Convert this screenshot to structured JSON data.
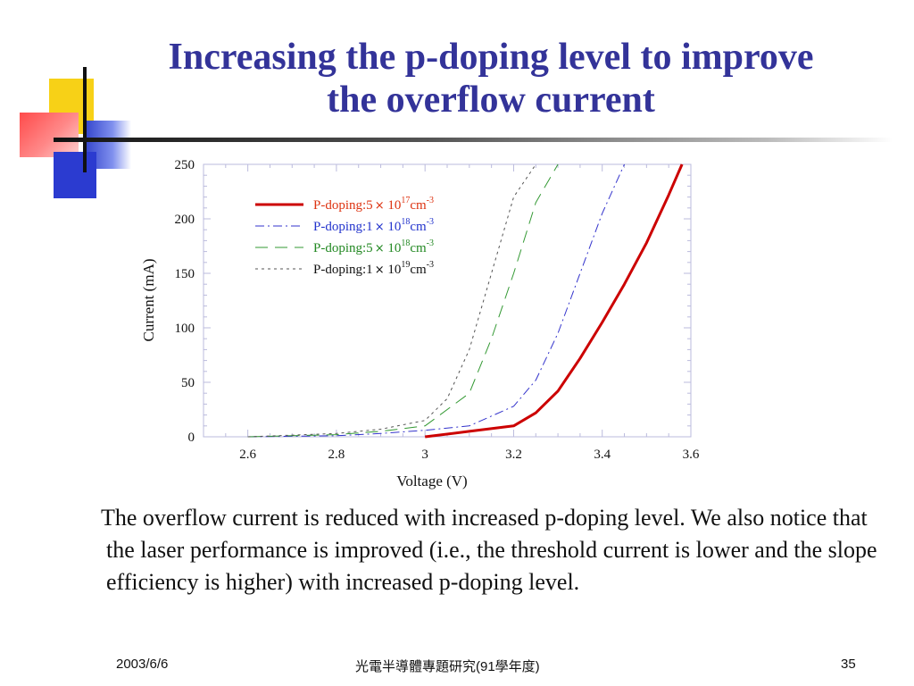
{
  "slide": {
    "title_line1": "Increasing the p-doping level to improve",
    "title_line2": "the overflow current",
    "body": "The overflow current is reduced with increased p-doping level. We also notice that the laser performance is improved (i.e., the threshold current is lower and the slope efficiency is higher) with increased p-doping level.",
    "footer_date": "2003/6/6",
    "footer_center": "光電半導體專題研究(91學年度)",
    "footer_page": "35",
    "accent_colors": {
      "title": "#333399",
      "yellow": "#f7d117",
      "red": "#ff4a4a",
      "blue": "#2b3bd0"
    }
  },
  "chart_data": {
    "type": "line",
    "title": "",
    "xlabel": "Voltage (V)",
    "ylabel": "Current (mA)",
    "xlim": [
      2.5,
      3.6
    ],
    "ylim": [
      0,
      250
    ],
    "xticks": [
      "2.6",
      "2.8",
      "3",
      "3.2",
      "3.4",
      "3.6"
    ],
    "xtick_values": [
      2.6,
      2.8,
      3.0,
      3.2,
      3.4,
      3.6
    ],
    "yticks": [
      "0",
      "50",
      "100",
      "150",
      "200",
      "250"
    ],
    "ytick_values": [
      0,
      50,
      100,
      150,
      200,
      250
    ],
    "grid": false,
    "legend_position": "top-center",
    "series": [
      {
        "name": "P-doping:5× 10^17cm^-3",
        "legend_base": "P-doping:5",
        "legend_exp": "17",
        "color": "#cc0000",
        "dash": "solid",
        "x": [
          3.0,
          3.1,
          3.2,
          3.25,
          3.3,
          3.35,
          3.4,
          3.45,
          3.5,
          3.55,
          3.58
        ],
        "y": [
          0,
          5,
          10,
          22,
          42,
          72,
          105,
          140,
          178,
          222,
          250
        ]
      },
      {
        "name": "P-doping:1× 10^18cm^-3",
        "legend_base": "P-doping:1",
        "legend_exp": "18",
        "color": "#3333cc",
        "dash": "dashdot",
        "x": [
          2.6,
          2.8,
          2.9,
          3.0,
          3.1,
          3.2,
          3.25,
          3.3,
          3.35,
          3.4,
          3.45
        ],
        "y": [
          0,
          1,
          3,
          6,
          10,
          28,
          52,
          95,
          150,
          205,
          250
        ]
      },
      {
        "name": "P-doping:5× 10^18cm^-3",
        "legend_base": "P-doping:5",
        "legend_exp": "18",
        "color": "#339933",
        "dash": "longdash",
        "x": [
          2.6,
          2.8,
          2.9,
          3.0,
          3.1,
          3.15,
          3.2,
          3.25,
          3.3
        ],
        "y": [
          0,
          2,
          5,
          10,
          40,
          90,
          150,
          215,
          250
        ]
      },
      {
        "name": "P-doping:1× 10^19cm^-3",
        "legend_base": "P-doping:1",
        "legend_exp": "19",
        "color": "#555555",
        "dash": "shortdash",
        "x": [
          2.6,
          2.8,
          2.9,
          3.0,
          3.05,
          3.1,
          3.15,
          3.2,
          3.25
        ],
        "y": [
          0,
          3,
          7,
          15,
          35,
          80,
          150,
          220,
          250
        ]
      }
    ]
  }
}
